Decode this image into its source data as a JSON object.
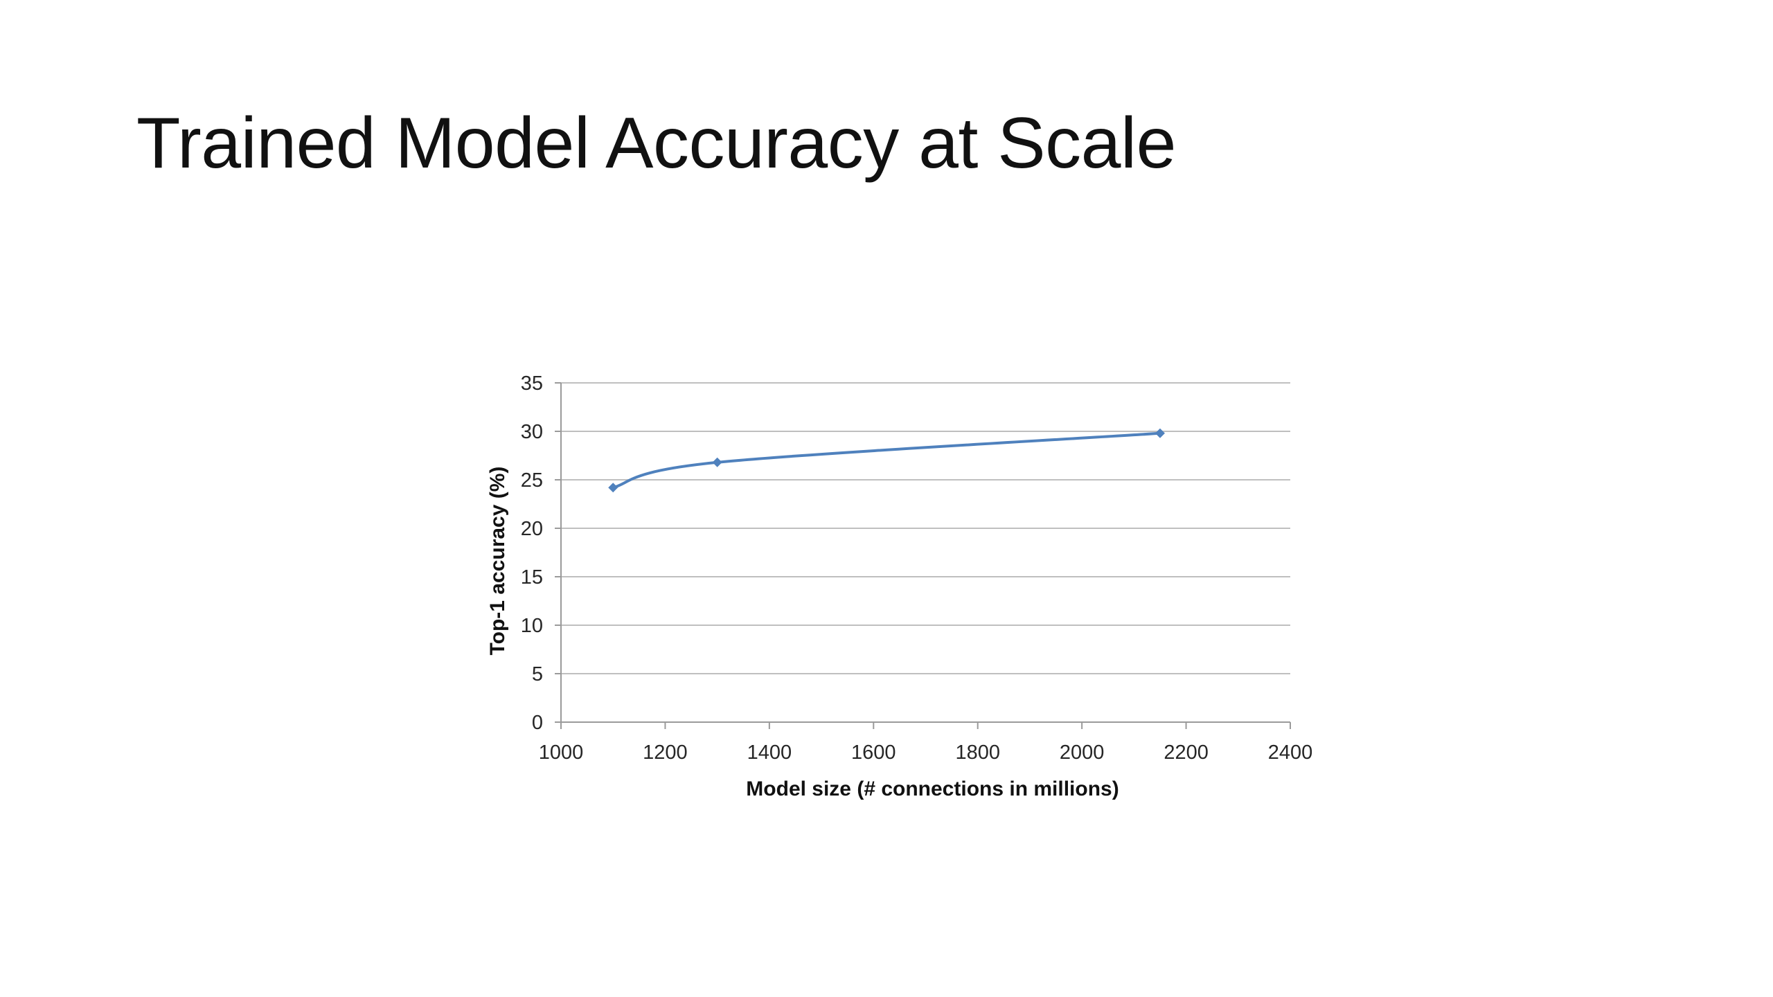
{
  "slide": {
    "title": "Trained Model Accuracy at Scale"
  },
  "chart_data": {
    "type": "line",
    "title": "",
    "xlabel": "Model size (# connections in millions)",
    "ylabel": "Top-1 accuracy (%)",
    "xlim": [
      1000,
      2400
    ],
    "ylim": [
      0,
      35
    ],
    "xticks": [
      1000,
      1200,
      1400,
      1600,
      1800,
      2000,
      2200,
      2400
    ],
    "yticks": [
      0,
      5,
      10,
      15,
      20,
      25,
      30,
      35
    ],
    "grid": "horizontal",
    "legend": "none",
    "smooth": true,
    "series": [
      {
        "color": "#4f81bd",
        "x": [
          1100,
          1300,
          2150
        ],
        "y": [
          24.2,
          26.8,
          29.8
        ]
      }
    ]
  }
}
